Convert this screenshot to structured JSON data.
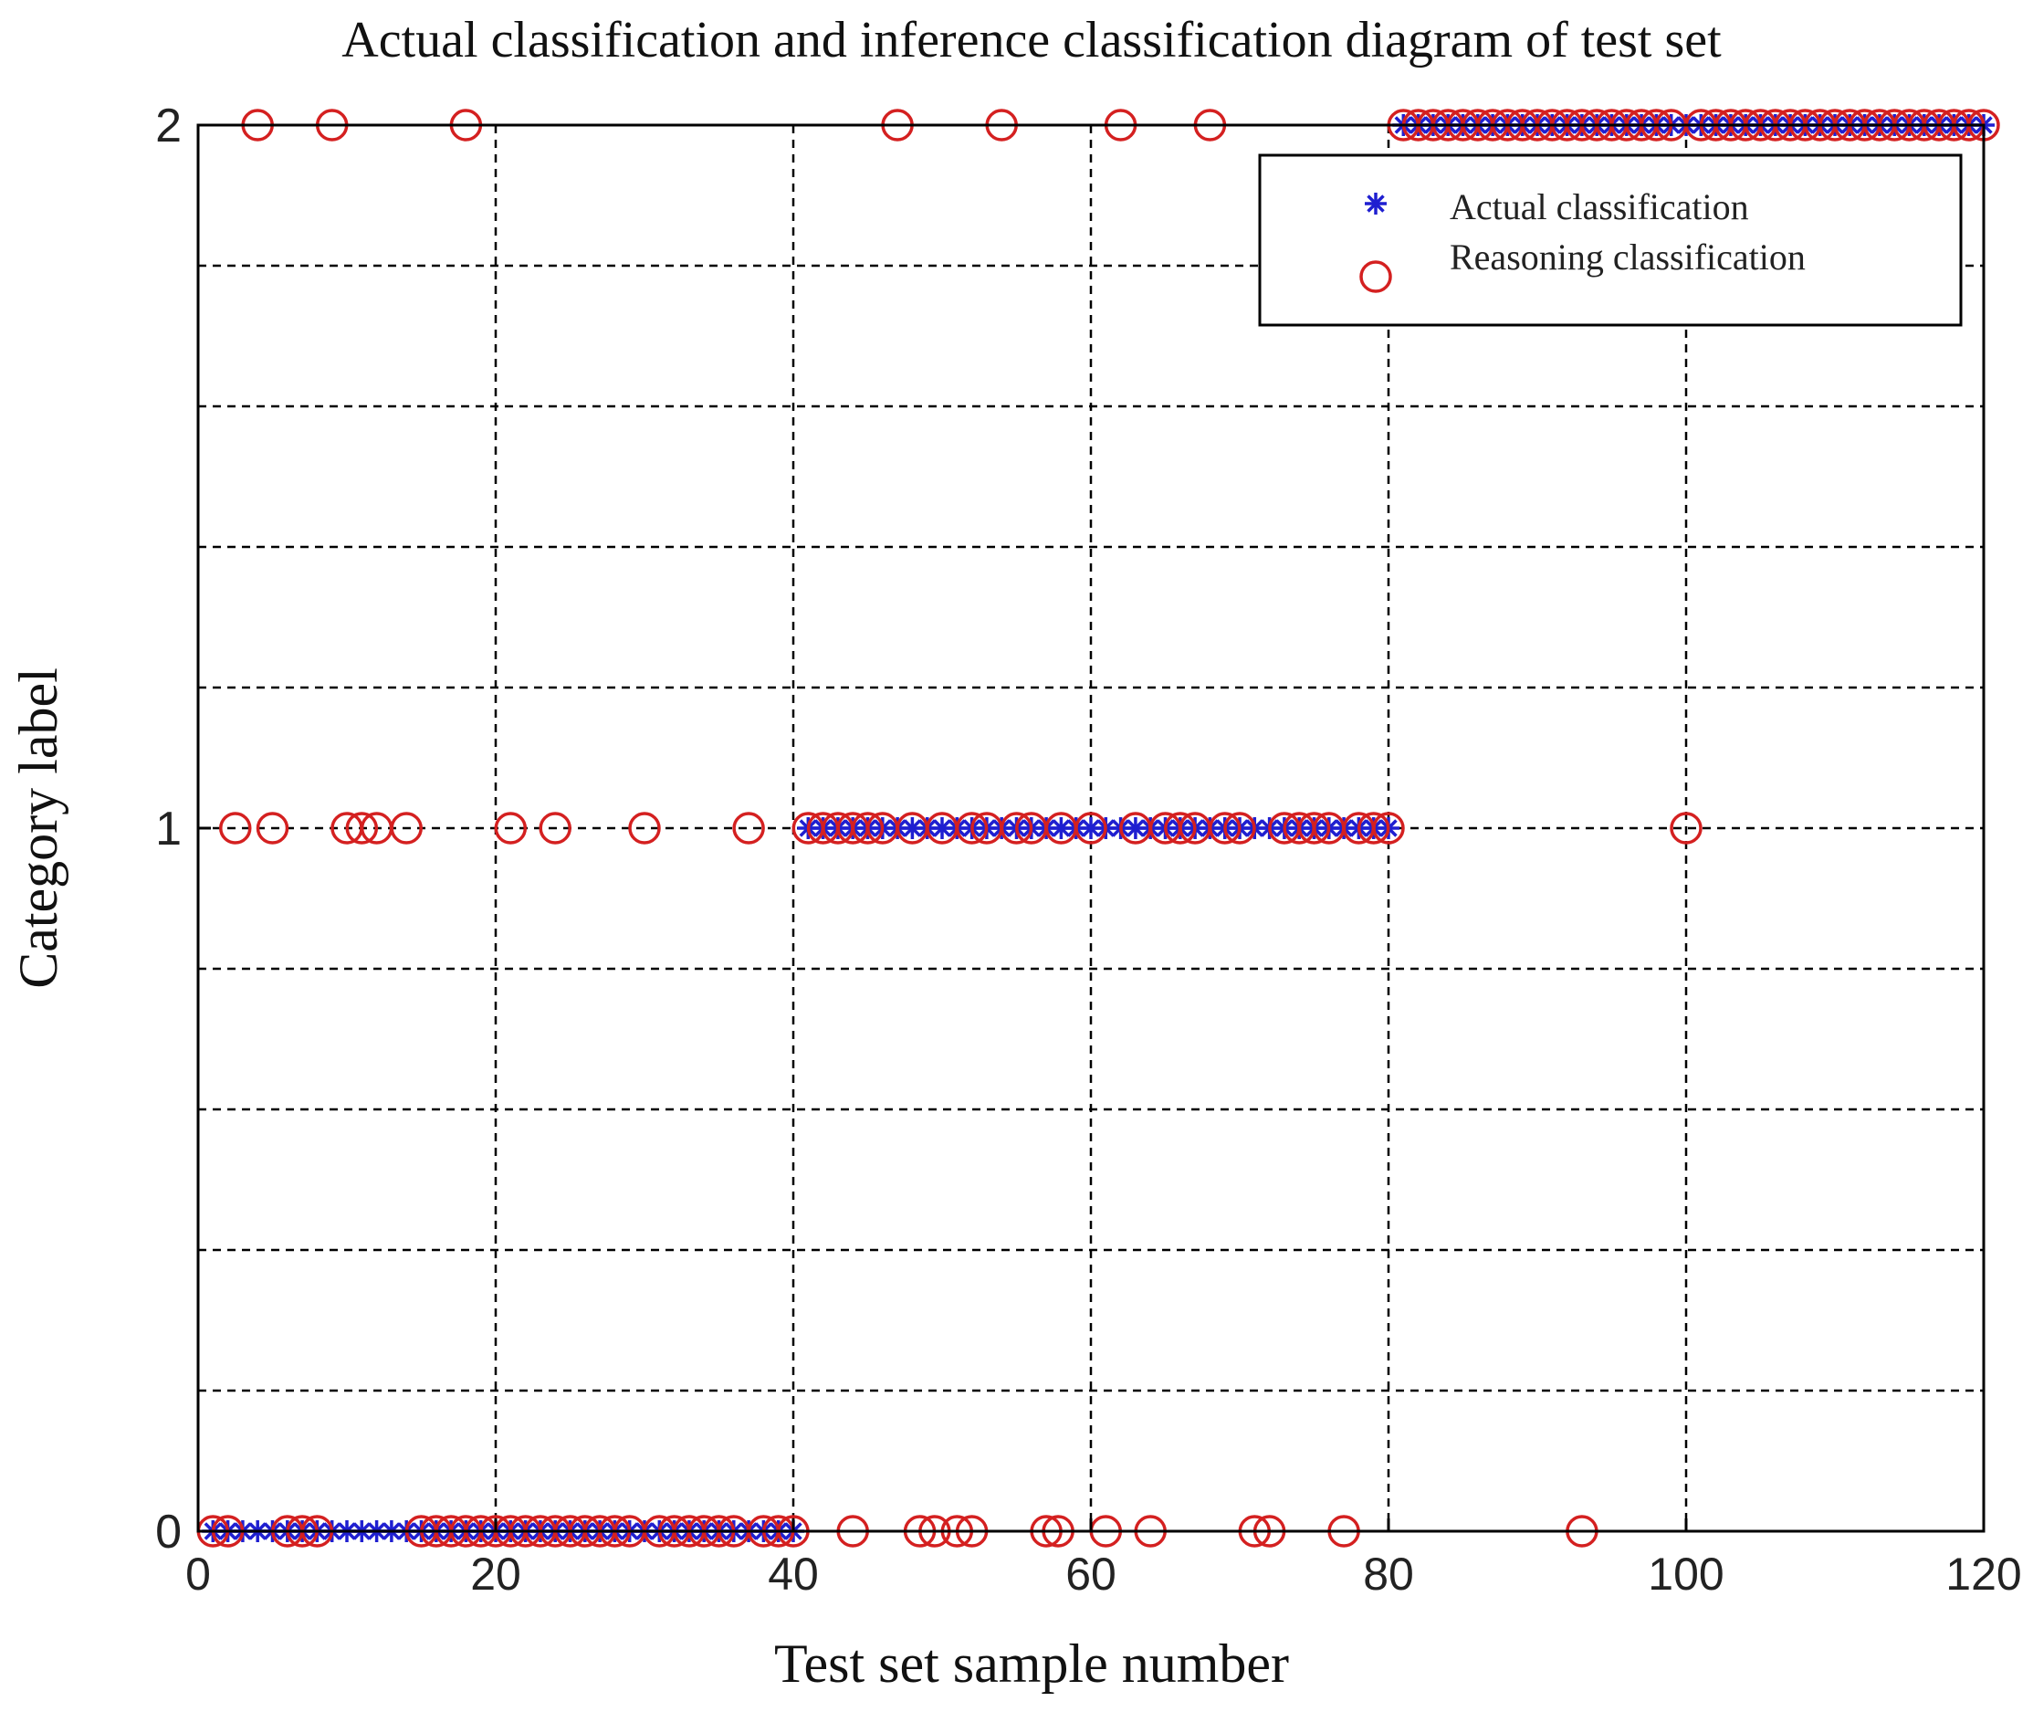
{
  "chart_data": {
    "type": "scatter",
    "title": "Actual classification and inference classification diagram of test set",
    "xlabel": "Test set sample number",
    "ylabel": "Category label",
    "xlim": [
      0,
      120
    ],
    "ylim": [
      0,
      2
    ],
    "x_ticks": [
      "0",
      "20",
      "40",
      "60",
      "80",
      "100",
      "120"
    ],
    "y_ticks": [
      "0",
      "1",
      "2"
    ],
    "grid": true,
    "legend_position": "top-right",
    "series": [
      {
        "name": "Actual classification",
        "marker": "asterisk",
        "color": "#1f1fd0",
        "segments": [
          {
            "y": 0,
            "x_from": 1,
            "x_to": 40
          },
          {
            "y": 1,
            "x_from": 41,
            "x_to": 80
          },
          {
            "y": 2,
            "x_from": 81,
            "x_to": 120
          }
        ]
      },
      {
        "name": "Reasoning classification",
        "marker": "circle",
        "color": "#d42020",
        "points": [
          {
            "x": 4,
            "y": 2
          },
          {
            "x": 9,
            "y": 2
          },
          {
            "x": 18,
            "y": 2
          },
          {
            "x": 2.5,
            "y": 1
          },
          {
            "x": 5,
            "y": 1
          },
          {
            "x": 10,
            "y": 1
          },
          {
            "x": 11,
            "y": 1
          },
          {
            "x": 12,
            "y": 1
          },
          {
            "x": 14,
            "y": 1
          },
          {
            "x": 21,
            "y": 1
          },
          {
            "x": 24,
            "y": 1
          },
          {
            "x": 30,
            "y": 1
          },
          {
            "x": 37,
            "y": 1
          },
          {
            "x": 1,
            "y": 0
          },
          {
            "x": 2,
            "y": 0
          },
          {
            "x": 6,
            "y": 0
          },
          {
            "x": 7,
            "y": 0
          },
          {
            "x": 8,
            "y": 0
          },
          {
            "x": 15,
            "y": 0
          },
          {
            "x": 16,
            "y": 0
          },
          {
            "x": 17,
            "y": 0
          },
          {
            "x": 18,
            "y": 0
          },
          {
            "x": 19,
            "y": 0
          },
          {
            "x": 20,
            "y": 0
          },
          {
            "x": 21,
            "y": 0
          },
          {
            "x": 22,
            "y": 0
          },
          {
            "x": 23,
            "y": 0
          },
          {
            "x": 24,
            "y": 0
          },
          {
            "x": 25,
            "y": 0
          },
          {
            "x": 26,
            "y": 0
          },
          {
            "x": 27,
            "y": 0
          },
          {
            "x": 28,
            "y": 0
          },
          {
            "x": 29,
            "y": 0
          },
          {
            "x": 31,
            "y": 0
          },
          {
            "x": 32,
            "y": 0
          },
          {
            "x": 33,
            "y": 0
          },
          {
            "x": 34,
            "y": 0
          },
          {
            "x": 35,
            "y": 0
          },
          {
            "x": 36,
            "y": 0
          },
          {
            "x": 38,
            "y": 0
          },
          {
            "x": 39,
            "y": 0
          },
          {
            "x": 40,
            "y": 0
          },
          {
            "x": 47,
            "y": 2
          },
          {
            "x": 54,
            "y": 2
          },
          {
            "x": 62,
            "y": 2
          },
          {
            "x": 68,
            "y": 2
          },
          {
            "x": 41,
            "y": 1
          },
          {
            "x": 42,
            "y": 1
          },
          {
            "x": 43,
            "y": 1
          },
          {
            "x": 44,
            "y": 1
          },
          {
            "x": 45,
            "y": 1
          },
          {
            "x": 46,
            "y": 1
          },
          {
            "x": 48,
            "y": 1
          },
          {
            "x": 50,
            "y": 1
          },
          {
            "x": 52,
            "y": 1
          },
          {
            "x": 53,
            "y": 1
          },
          {
            "x": 55,
            "y": 1
          },
          {
            "x": 56,
            "y": 1
          },
          {
            "x": 58,
            "y": 1
          },
          {
            "x": 60,
            "y": 1
          },
          {
            "x": 63,
            "y": 1
          },
          {
            "x": 65,
            "y": 1
          },
          {
            "x": 66,
            "y": 1
          },
          {
            "x": 67,
            "y": 1
          },
          {
            "x": 69,
            "y": 1
          },
          {
            "x": 70,
            "y": 1
          },
          {
            "x": 73,
            "y": 1
          },
          {
            "x": 74,
            "y": 1
          },
          {
            "x": 75,
            "y": 1
          },
          {
            "x": 76,
            "y": 1
          },
          {
            "x": 78,
            "y": 1
          },
          {
            "x": 79,
            "y": 1
          },
          {
            "x": 80,
            "y": 1
          },
          {
            "x": 44,
            "y": 0
          },
          {
            "x": 48.5,
            "y": 0
          },
          {
            "x": 49.5,
            "y": 0
          },
          {
            "x": 51,
            "y": 0
          },
          {
            "x": 52,
            "y": 0
          },
          {
            "x": 57,
            "y": 0
          },
          {
            "x": 57.8,
            "y": 0
          },
          {
            "x": 61,
            "y": 0
          },
          {
            "x": 64,
            "y": 0
          },
          {
            "x": 71,
            "y": 0
          },
          {
            "x": 72,
            "y": 0
          },
          {
            "x": 77,
            "y": 0
          },
          {
            "x": 93,
            "y": 0
          },
          {
            "x": 100,
            "y": 1
          },
          {
            "x": 81,
            "y": 2
          },
          {
            "x": 82,
            "y": 2
          },
          {
            "x": 83,
            "y": 2
          },
          {
            "x": 84,
            "y": 2
          },
          {
            "x": 85,
            "y": 2
          },
          {
            "x": 86,
            "y": 2
          },
          {
            "x": 87,
            "y": 2
          },
          {
            "x": 88,
            "y": 2
          },
          {
            "x": 89,
            "y": 2
          },
          {
            "x": 90,
            "y": 2
          },
          {
            "x": 91,
            "y": 2
          },
          {
            "x": 92,
            "y": 2
          },
          {
            "x": 93,
            "y": 2
          },
          {
            "x": 94,
            "y": 2
          },
          {
            "x": 95,
            "y": 2
          },
          {
            "x": 96,
            "y": 2
          },
          {
            "x": 97,
            "y": 2
          },
          {
            "x": 98,
            "y": 2
          },
          {
            "x": 99,
            "y": 2
          },
          {
            "x": 101,
            "y": 2
          },
          {
            "x": 102,
            "y": 2
          },
          {
            "x": 103,
            "y": 2
          },
          {
            "x": 104,
            "y": 2
          },
          {
            "x": 105,
            "y": 2
          },
          {
            "x": 106,
            "y": 2
          },
          {
            "x": 107,
            "y": 2
          },
          {
            "x": 108,
            "y": 2
          },
          {
            "x": 109,
            "y": 2
          },
          {
            "x": 110,
            "y": 2
          },
          {
            "x": 111,
            "y": 2
          },
          {
            "x": 112,
            "y": 2
          },
          {
            "x": 113,
            "y": 2
          },
          {
            "x": 114,
            "y": 2
          },
          {
            "x": 115,
            "y": 2
          },
          {
            "x": 116,
            "y": 2
          },
          {
            "x": 117,
            "y": 2
          },
          {
            "x": 118,
            "y": 2
          },
          {
            "x": 119,
            "y": 2
          },
          {
            "x": 120,
            "y": 2
          }
        ]
      }
    ]
  }
}
